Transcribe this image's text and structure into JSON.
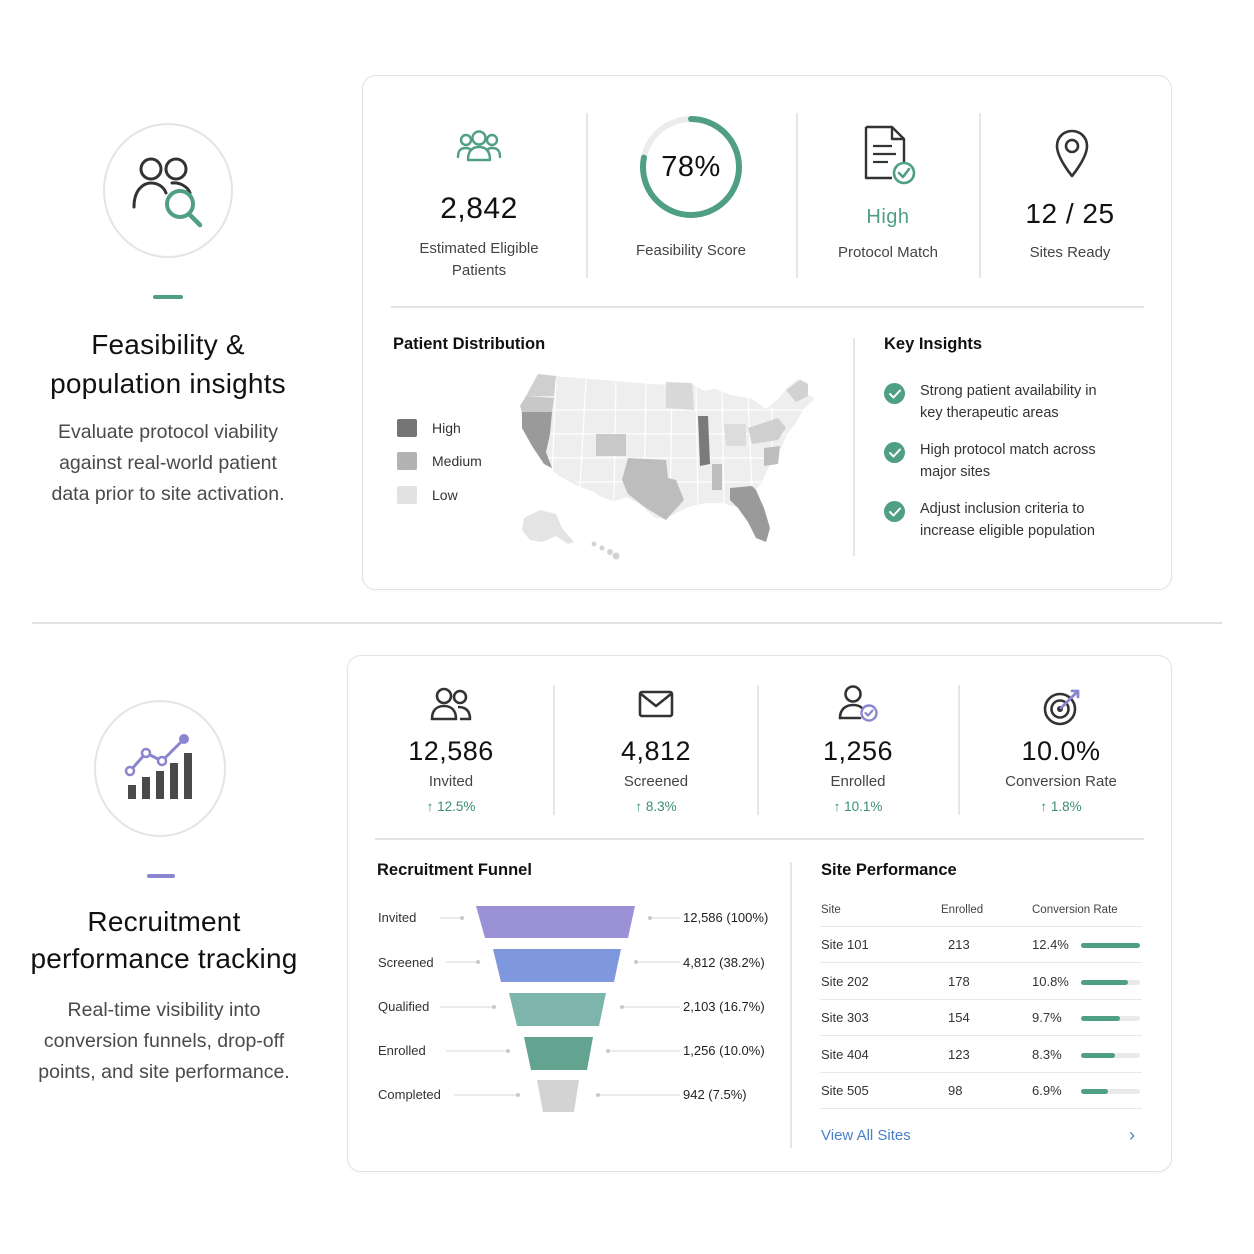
{
  "feasibility": {
    "intro": {
      "icon": "people-search-icon",
      "title_line1": "Feasibility &",
      "title_line2": "population insights",
      "desc_line1": "Evaluate protocol viability",
      "desc_line2": "against real-world patient",
      "desc_line3": "data prior to site activation.",
      "accent": "#4f9e86"
    },
    "stats": [
      {
        "icon": "users-group-icon",
        "value": "2,842",
        "label_line1": "Estimated Eligible",
        "label_line2": "Patients"
      },
      {
        "icon": "progress-ring",
        "value": "78%",
        "percent": 78,
        "label_line1": "Feasibility Score"
      },
      {
        "icon": "document-check-icon",
        "value": "High",
        "label_line1": "Protocol Match"
      },
      {
        "icon": "location-pin-icon",
        "value": "12 / 25",
        "label_line1": "Sites Ready"
      }
    ],
    "distribution": {
      "title": "Patient Distribution",
      "legend": [
        {
          "label": "High",
          "color": "#757575"
        },
        {
          "label": "Medium",
          "color": "#b3b3b3"
        },
        {
          "label": "Low",
          "color": "#e2e2e2"
        }
      ],
      "map_icon": "us-map-icon"
    },
    "insights": {
      "title": "Key Insights",
      "items": [
        {
          "line1": "Strong patient availability in",
          "line2": "key therapeutic areas"
        },
        {
          "line1": "High protocol match across",
          "line2": "major sites"
        },
        {
          "line1": "Adjust inclusion criteria to",
          "line2": "increase eligible population"
        }
      ]
    }
  },
  "recruitment": {
    "intro": {
      "icon": "growth-chart-icon",
      "title_line1": "Recruitment",
      "title_line2": "performance tracking",
      "desc_line1": "Real-time visibility into",
      "desc_line2": "conversion funnels, drop-off",
      "desc_line3": "points, and site performance.",
      "accent": "#8b85cf"
    },
    "stats": [
      {
        "icon": "users-icon",
        "value": "12,586",
        "label": "Invited",
        "delta": "↑ 12.5%"
      },
      {
        "icon": "mail-icon",
        "value": "4,812",
        "label": "Screened",
        "delta": "↑ 8.3%"
      },
      {
        "icon": "user-check-icon",
        "value": "1,256",
        "label": "Enrolled",
        "delta": "↑ 10.1%"
      },
      {
        "icon": "target-icon",
        "value": "10.0%",
        "label": "Conversion Rate",
        "delta": "↑ 1.8%"
      }
    ],
    "funnel": {
      "title": "Recruitment Funnel",
      "stages": [
        {
          "label": "Invited",
          "value": "12,586 (100%)",
          "color": "#9b91d6"
        },
        {
          "label": "Screened",
          "value": "4,812 (38.2%)",
          "color": "#7f97dc"
        },
        {
          "label": "Qualified",
          "value": "2,103 (16.7%)",
          "color": "#7db5ad"
        },
        {
          "label": "Enrolled",
          "value": "1,256 (10.0%)",
          "color": "#62a48f"
        },
        {
          "label": "Completed",
          "value": "942 (7.5%)",
          "color": "#d3d3d3"
        }
      ]
    },
    "sites": {
      "title": "Site Performance",
      "columns": [
        "Site",
        "Enrolled",
        "Conversion Rate"
      ],
      "rows": [
        {
          "site": "Site 101",
          "enrolled": "213",
          "rate": "12.4%",
          "level": 1.0
        },
        {
          "site": "Site 202",
          "enrolled": "178",
          "rate": "10.8%",
          "level": 0.8
        },
        {
          "site": "Site 303",
          "enrolled": "154",
          "rate": "9.7%",
          "level": 0.66
        },
        {
          "site": "Site 404",
          "enrolled": "123",
          "rate": "8.3%",
          "level": 0.58
        },
        {
          "site": "Site 505",
          "enrolled": "98",
          "rate": "6.9%",
          "level": 0.46
        }
      ],
      "link": "View All Sites"
    }
  }
}
